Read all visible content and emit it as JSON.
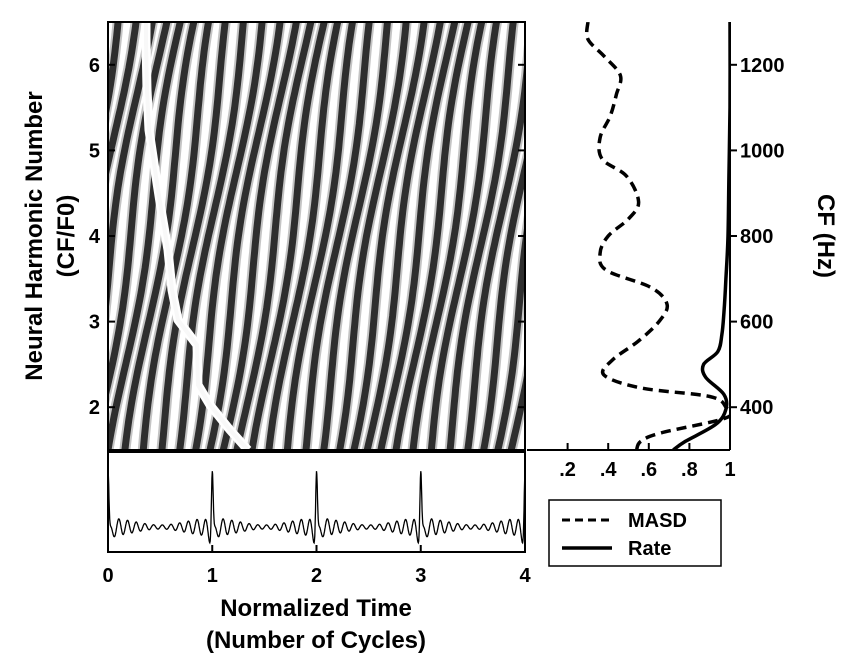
{
  "chart_data": [
    {
      "type": "heatmap",
      "ylabel": [
        "Neural Harmonic Number",
        "(CF/F0)"
      ],
      "yticks": [
        "2",
        "3",
        "4",
        "5",
        "6"
      ],
      "ylim": [
        1.5,
        6.5
      ],
      "xlim": [
        0,
        4
      ],
      "grid": false
    },
    {
      "type": "line",
      "xticks": [
        ".2",
        ".4",
        ".6",
        ".8",
        "1"
      ],
      "xlim": [
        0,
        1
      ],
      "ylabel": "CF (Hz)",
      "yticks": [
        "400",
        "600",
        "800",
        "1000",
        "1200"
      ],
      "ylim": [
        300,
        1300
      ],
      "legend": "bottom",
      "series": [
        {
          "name": "MASD",
          "style": "dashed",
          "x": [
            0.54,
            0.56,
            0.66,
            0.98,
            0.98,
            0.9,
            0.56,
            0.38,
            0.42,
            0.55,
            0.65,
            0.69,
            0.61,
            0.39,
            0.36,
            0.4,
            0.5,
            0.55,
            0.49,
            0.37,
            0.36,
            0.41,
            0.44,
            0.46,
            0.38,
            0.3,
            0.3
          ],
          "y": [
            300,
            320,
            340,
            375,
            400,
            425,
            445,
            475,
            510,
            555,
            600,
            640,
            680,
            720,
            760,
            800,
            840,
            880,
            940,
            980,
            1030,
            1080,
            1130,
            1175,
            1220,
            1260,
            1300
          ]
        },
        {
          "name": "Rate",
          "style": "solid",
          "x": [
            0.72,
            0.78,
            0.93,
            0.98,
            0.97,
            0.88,
            0.87,
            0.94,
            0.96,
            0.97,
            0.98,
            0.99,
            0.995,
            1.0,
            1.0
          ],
          "y": [
            300,
            320,
            360,
            395,
            430,
            470,
            500,
            530,
            570,
            620,
            700,
            800,
            950,
            1100,
            1300
          ]
        }
      ]
    },
    {
      "type": "line",
      "xlabel": [
        "Normalized Time",
        "(Number of Cycles)"
      ],
      "xticks": [
        "0",
        "1",
        "2",
        "3",
        "4"
      ],
      "xlim": [
        0,
        4
      ],
      "peaks_at": [
        0,
        1,
        2,
        3,
        4
      ]
    }
  ]
}
